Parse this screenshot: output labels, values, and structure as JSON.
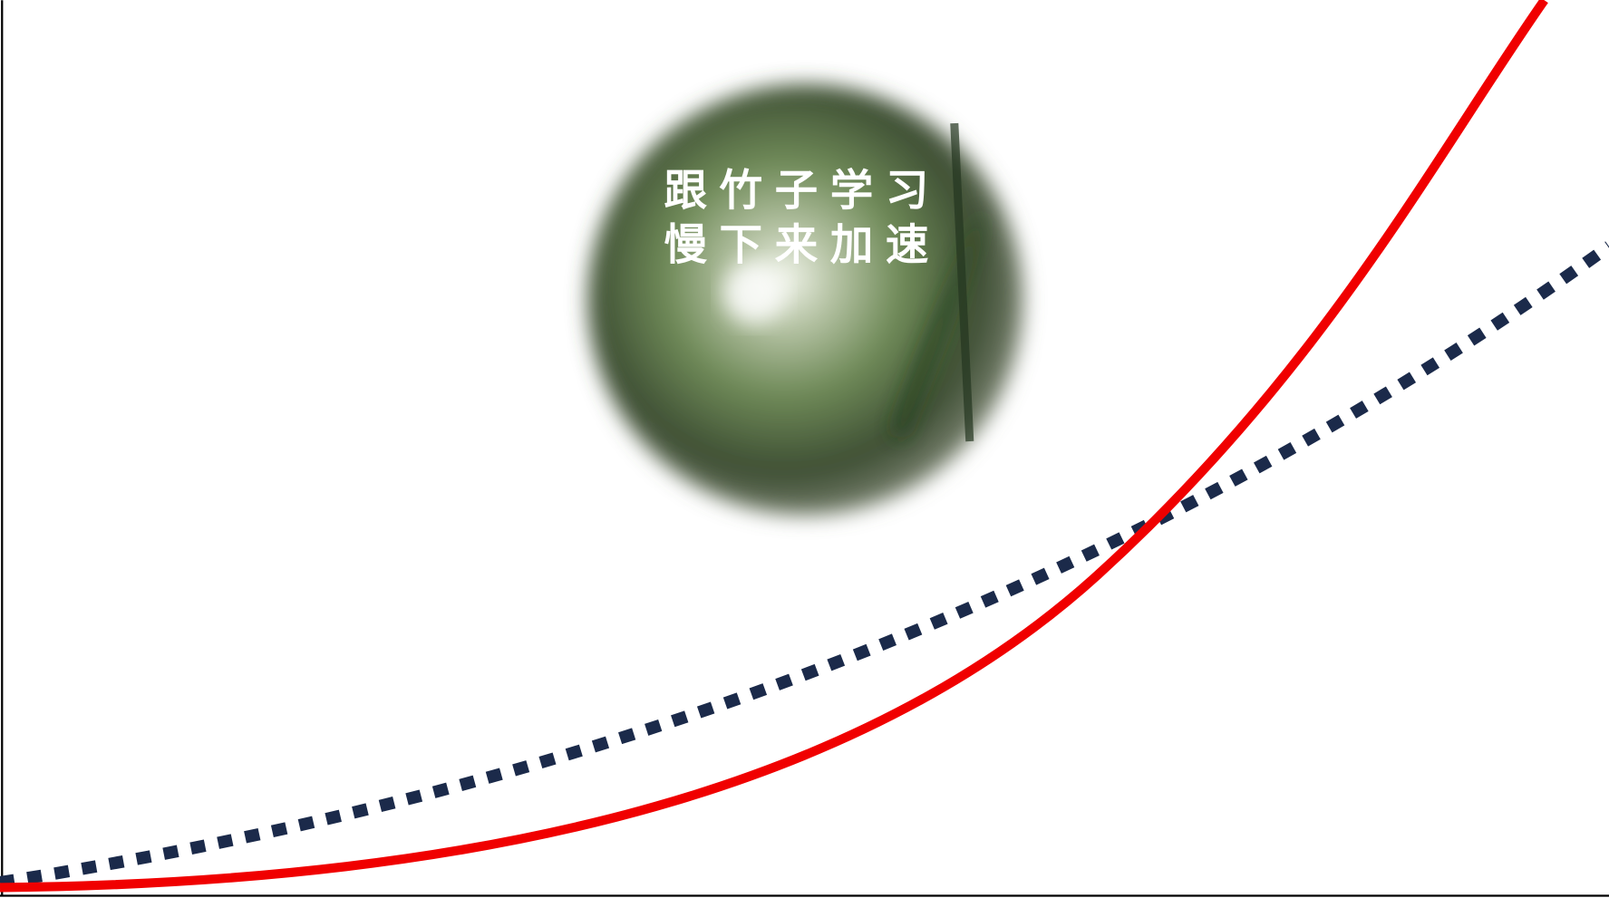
{
  "slide": {
    "heading_lines": [
      "跟竹子学习",
      "慢下来加速"
    ]
  }
}
